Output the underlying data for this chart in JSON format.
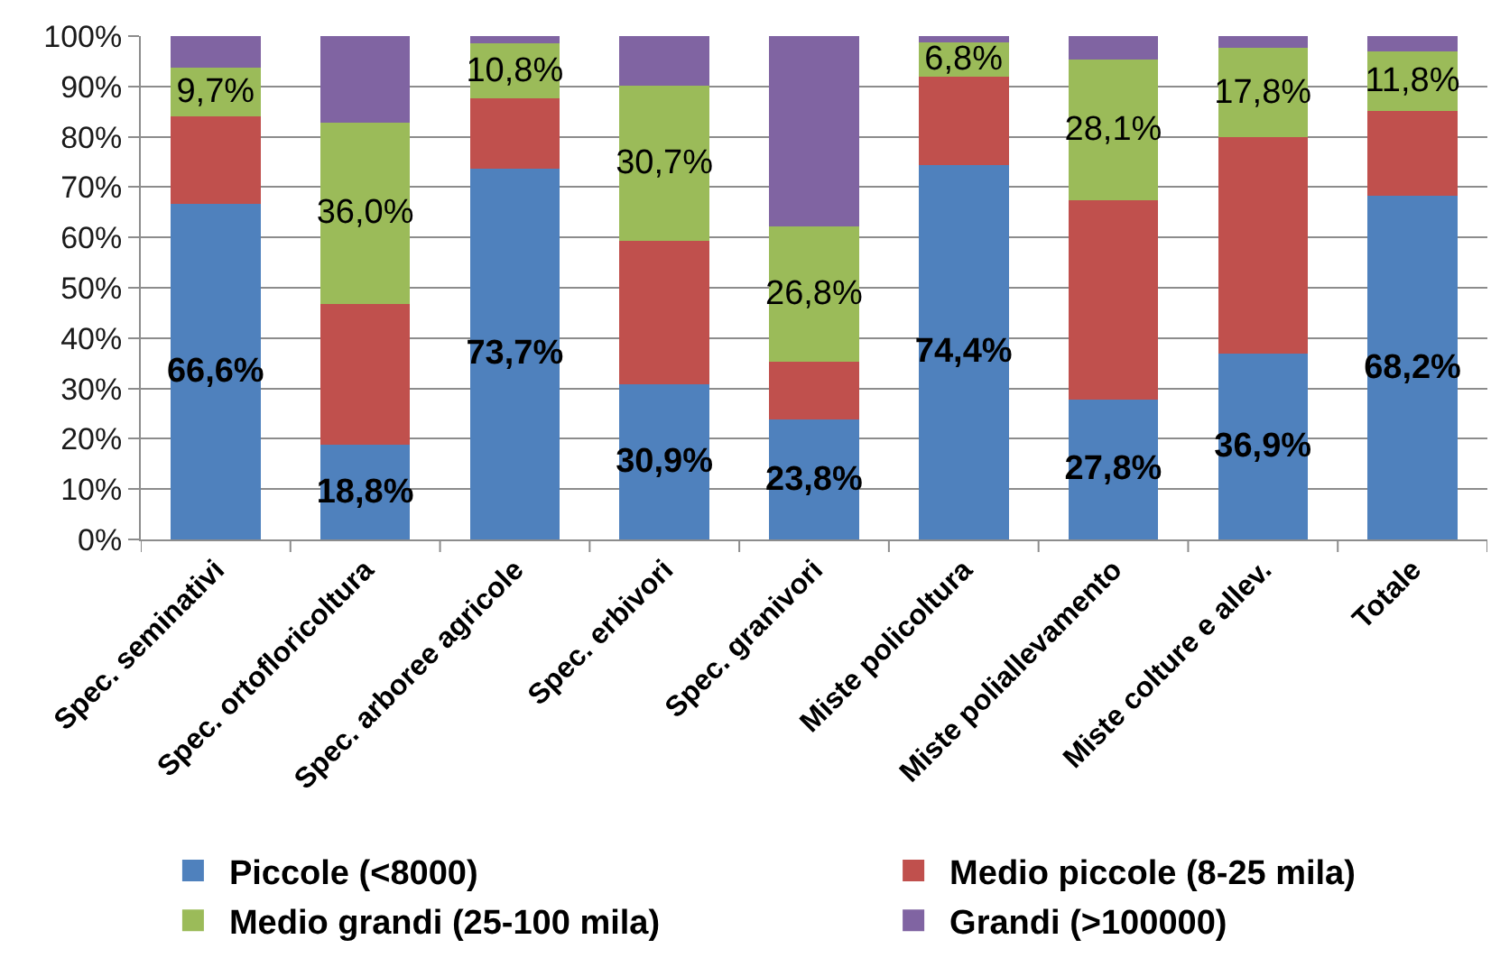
{
  "chart_data": {
    "type": "bar",
    "stacked": true,
    "categories": [
      "Spec. seminativi",
      "Spec. ortofloricoltura",
      "Spec. arboree agricole",
      "Spec. erbivori",
      "Spec. granivori",
      "Miste policoltura",
      "Miste poliallevamento",
      "Miste colture e allev.",
      "Totale"
    ],
    "series": [
      {
        "name": "Piccole (<8000)",
        "color": "#4f81bd",
        "values": [
          66.6,
          18.8,
          73.7,
          30.9,
          23.8,
          74.4,
          27.8,
          36.9,
          68.2
        ],
        "value_labels": [
          "66,6%",
          "18,8%",
          "73,7%",
          "30,9%",
          "23,8%",
          "74,4%",
          "27,8%",
          "36,9%",
          "68,2%"
        ]
      },
      {
        "name": "Medio piccole (8-25 mila)",
        "color": "#c0504d",
        "values": [
          17.5,
          28.0,
          14.0,
          28.5,
          11.5,
          17.5,
          39.5,
          43.0,
          17.0
        ]
      },
      {
        "name": "Medio grandi (25-100 mila)",
        "color": "#9bbb59",
        "values": [
          9.7,
          36.0,
          10.8,
          30.7,
          26.8,
          6.8,
          28.1,
          17.8,
          11.8
        ],
        "value_labels": [
          "9,7%",
          "36,0%",
          "10,8%",
          "30,7%",
          "26,8%",
          "6,8%",
          "28,1%",
          "17,8%",
          "11,8%"
        ]
      },
      {
        "name": "Grandi (>100000)",
        "color": "#8064a2",
        "values": [
          6.2,
          17.2,
          1.5,
          9.9,
          37.9,
          1.3,
          4.6,
          2.3,
          3.0
        ]
      }
    ],
    "ylim": [
      0,
      100
    ],
    "yticks": [
      {
        "value": 0,
        "label": "0%"
      },
      {
        "value": 10,
        "label": "10%"
      },
      {
        "value": 20,
        "label": "20%"
      },
      {
        "value": 30,
        "label": "30%"
      },
      {
        "value": 40,
        "label": "40%"
      },
      {
        "value": 50,
        "label": "50%"
      },
      {
        "value": 60,
        "label": "60%"
      },
      {
        "value": 70,
        "label": "70%"
      },
      {
        "value": 80,
        "label": "80%"
      },
      {
        "value": 90,
        "label": "90%"
      },
      {
        "value": 100,
        "label": "100%"
      }
    ],
    "grid": "y",
    "legend": "bottom"
  }
}
